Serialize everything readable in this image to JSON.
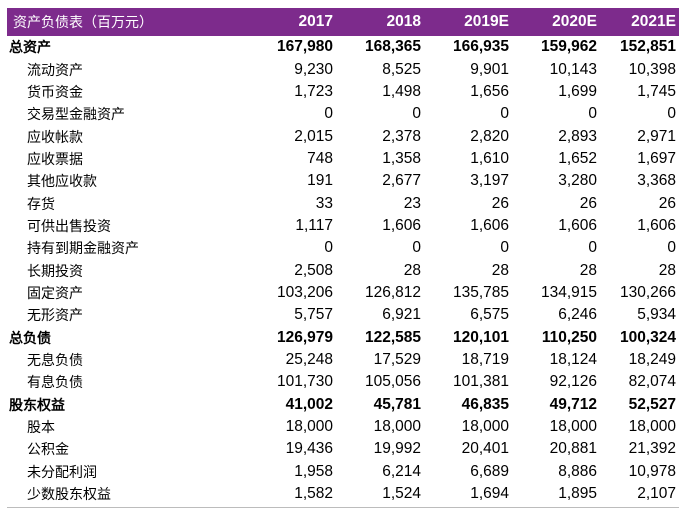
{
  "header": {
    "title": "资产负债表（百万元）",
    "years": [
      "2017",
      "2018",
      "2019E",
      "2020E",
      "2021E"
    ]
  },
  "rows": [
    {
      "label": "总资产",
      "type": "section",
      "values": [
        "167,980",
        "168,365",
        "166,935",
        "159,962",
        "152,851"
      ]
    },
    {
      "label": "流动资产",
      "type": "sub",
      "values": [
        "9,230",
        "8,525",
        "9,901",
        "10,143",
        "10,398"
      ]
    },
    {
      "label": "货币资金",
      "type": "sub",
      "values": [
        "1,723",
        "1,498",
        "1,656",
        "1,699",
        "1,745"
      ]
    },
    {
      "label": "交易型金融资产",
      "type": "sub",
      "values": [
        "0",
        "0",
        "0",
        "0",
        "0"
      ]
    },
    {
      "label": "应收帐款",
      "type": "sub",
      "values": [
        "2,015",
        "2,378",
        "2,820",
        "2,893",
        "2,971"
      ]
    },
    {
      "label": "应收票据",
      "type": "sub",
      "values": [
        "748",
        "1,358",
        "1,610",
        "1,652",
        "1,697"
      ]
    },
    {
      "label": "其他应收款",
      "type": "sub",
      "values": [
        "191",
        "2,677",
        "3,197",
        "3,280",
        "3,368"
      ]
    },
    {
      "label": "存货",
      "type": "sub",
      "values": [
        "33",
        "23",
        "26",
        "26",
        "26"
      ]
    },
    {
      "label": "可供出售投资",
      "type": "sub",
      "values": [
        "1,117",
        "1,606",
        "1,606",
        "1,606",
        "1,606"
      ]
    },
    {
      "label": "持有到期金融资产",
      "type": "sub",
      "values": [
        "0",
        "0",
        "0",
        "0",
        "0"
      ]
    },
    {
      "label": "长期投资",
      "type": "sub",
      "values": [
        "2,508",
        "28",
        "28",
        "28",
        "28"
      ]
    },
    {
      "label": "固定资产",
      "type": "sub",
      "values": [
        "103,206",
        "126,812",
        "135,785",
        "134,915",
        "130,266"
      ]
    },
    {
      "label": "无形资产",
      "type": "sub",
      "values": [
        "5,757",
        "6,921",
        "6,575",
        "6,246",
        "5,934"
      ]
    },
    {
      "label": "总负债",
      "type": "section",
      "values": [
        "126,979",
        "122,585",
        "120,101",
        "110,250",
        "100,324"
      ]
    },
    {
      "label": "无息负债",
      "type": "sub",
      "values": [
        "25,248",
        "17,529",
        "18,719",
        "18,124",
        "18,249"
      ]
    },
    {
      "label": "有息负债",
      "type": "sub",
      "values": [
        "101,730",
        "105,056",
        "101,381",
        "92,126",
        "82,074"
      ]
    },
    {
      "label": "股东权益",
      "type": "section",
      "values": [
        "41,002",
        "45,781",
        "46,835",
        "49,712",
        "52,527"
      ]
    },
    {
      "label": "股本",
      "type": "sub",
      "values": [
        "18,000",
        "18,000",
        "18,000",
        "18,000",
        "18,000"
      ]
    },
    {
      "label": "公积金",
      "type": "sub",
      "values": [
        "19,436",
        "19,992",
        "20,401",
        "20,881",
        "21,392"
      ]
    },
    {
      "label": "未分配利润",
      "type": "sub",
      "values": [
        "1,958",
        "6,214",
        "6,689",
        "8,886",
        "10,978"
      ]
    },
    {
      "label": "少数股东权益",
      "type": "sub",
      "values": [
        "1,582",
        "1,524",
        "1,694",
        "1,895",
        "2,107"
      ]
    }
  ]
}
